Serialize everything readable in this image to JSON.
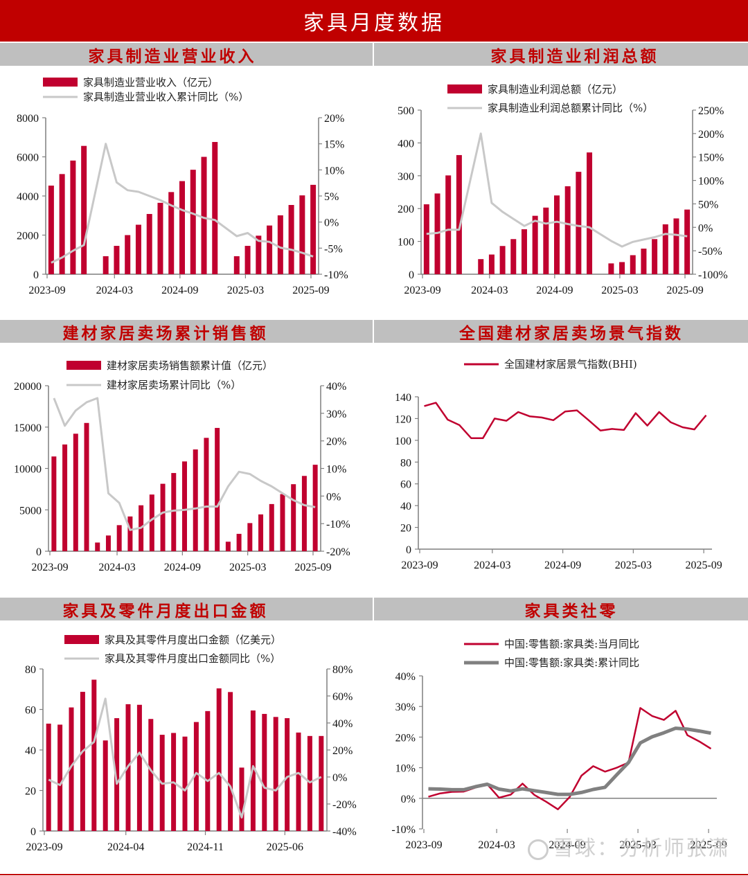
{
  "page": {
    "title": "家具月度数据",
    "watermark": "雪球：分析师张潇"
  },
  "colors": {
    "header_red": "#C00000",
    "bar_red": "#C0002F",
    "line_gray_light": "#C8C8C8",
    "line_gray_dark": "#808080",
    "line_red": "#C0002F",
    "section_gray": "#BFBFBF"
  },
  "sections": [
    {
      "title": "家具制造业营业收入"
    },
    {
      "title": "家具制造业利润总额"
    },
    {
      "title": "建材家居卖场累计销售额"
    },
    {
      "title": "全国建材家居卖场景气指数"
    },
    {
      "title": "家具及零件月度出口金额"
    },
    {
      "title": "家具类社零"
    }
  ],
  "chart_data": [
    {
      "type": "bar",
      "title": "家具制造业营业收入",
      "categories": [
        "2023-09",
        "2023-10",
        "2023-11",
        "2023-12",
        "2024-01",
        "2024-02",
        "2024-03",
        "2024-04",
        "2024-05",
        "2024-06",
        "2024-07",
        "2024-08",
        "2024-09",
        "2024-10",
        "2024-11",
        "2024-12",
        "2025-01",
        "2025-02",
        "2025-03",
        "2025-04",
        "2025-05",
        "2025-06",
        "2025-07",
        "2025-08",
        "2025-09"
      ],
      "xticks": [
        "2023-09",
        "2024-03",
        "2024-09",
        "2025-03",
        "2025-09"
      ],
      "series": [
        {
          "name": "家具制造业营业收入（亿元）",
          "type": "bar",
          "axis": "left",
          "values": [
            4530,
            5120,
            5810,
            6560,
            null,
            920,
            1450,
            2000,
            2530,
            3080,
            3650,
            4200,
            4760,
            5340,
            6000,
            6760,
            null,
            920,
            1450,
            1970,
            2490,
            3010,
            3540,
            4030,
            4570
          ]
        },
        {
          "name": "家具制造业营业收入累计同比（%）",
          "type": "line",
          "axis": "right",
          "values": [
            -7.8,
            -6.8,
            -5.5,
            -4.4,
            null,
            15.0,
            7.6,
            6.1,
            5.8,
            5.0,
            4.2,
            3.2,
            2.3,
            1.6,
            0.8,
            0.4,
            null,
            -2.7,
            -2.1,
            -3.6,
            -3.8,
            -4.9,
            -5.3,
            -5.9,
            -6.6
          ]
        }
      ],
      "ylim": [
        0,
        8000
      ],
      "yticks": [
        "0",
        "2000",
        "4000",
        "6000",
        "8000"
      ],
      "y2lim": [
        -10,
        20
      ],
      "y2ticks": [
        "-10%",
        "-5%",
        "0%",
        "5%",
        "10%",
        "15%",
        "20%"
      ],
      "legend": "top"
    },
    {
      "type": "bar",
      "title": "家具制造业利润总额",
      "categories": [
        "2023-09",
        "2023-10",
        "2023-11",
        "2023-12",
        "2024-01",
        "2024-02",
        "2024-03",
        "2024-04",
        "2024-05",
        "2024-06",
        "2024-07",
        "2024-08",
        "2024-09",
        "2024-10",
        "2024-11",
        "2024-12",
        "2025-01",
        "2025-02",
        "2025-03",
        "2025-04",
        "2025-05",
        "2025-06",
        "2025-07",
        "2025-08",
        "2025-09"
      ],
      "xticks": [
        "2023-09",
        "2024-03",
        "2024-09",
        "2025-03",
        "2025-09"
      ],
      "series": [
        {
          "name": "家具制造业利润总额（亿元）",
          "type": "bar",
          "axis": "left",
          "values": [
            213,
            246,
            301,
            363,
            null,
            46,
            60,
            86,
            107,
            137,
            178,
            203,
            240,
            268,
            312,
            371,
            null,
            33,
            37,
            58,
            78,
            107,
            152,
            170,
            197
          ]
        },
        {
          "name": "家具制造业利润总额累计同比（%）",
          "type": "line",
          "axis": "right",
          "values": [
            -14,
            -12,
            -5,
            -5,
            null,
            200,
            52,
            33,
            18,
            3,
            14,
            8,
            12,
            7,
            3,
            0,
            null,
            -29,
            -41,
            -31,
            -26,
            -21,
            -14,
            -16,
            -19
          ]
        }
      ],
      "ylim": [
        0,
        500
      ],
      "yticks": [
        "0",
        "100",
        "200",
        "300",
        "400",
        "500"
      ],
      "y2lim": [
        -100,
        250
      ],
      "y2ticks": [
        "-100%",
        "-50%",
        "0%",
        "50%",
        "100%",
        "150%",
        "200%",
        "250%"
      ],
      "legend": "top"
    },
    {
      "type": "bar",
      "title": "建材家居卖场累计销售额",
      "categories": [
        "2023-09",
        "2023-10",
        "2023-11",
        "2023-12",
        "2024-01",
        "2024-02",
        "2024-03",
        "2024-04",
        "2024-05",
        "2024-06",
        "2024-07",
        "2024-08",
        "2024-09",
        "2024-10",
        "2024-11",
        "2024-12",
        "2025-01",
        "2025-02",
        "2025-03",
        "2025-04",
        "2025-05",
        "2025-06",
        "2025-07",
        "2025-08",
        "2025-09"
      ],
      "xticks": [
        "2023-09",
        "2024-03",
        "2024-09",
        "2025-03",
        "2025-09"
      ],
      "series": [
        {
          "name": "建材家居卖场销售额累计值（亿元）",
          "type": "bar",
          "axis": "left",
          "values": [
            11450,
            12900,
            14200,
            15500,
            1050,
            1900,
            3150,
            4200,
            5550,
            6850,
            8150,
            9450,
            10850,
            12300,
            13700,
            14900,
            1150,
            2100,
            3400,
            4450,
            5700,
            6900,
            8100,
            9100,
            10450
          ]
        },
        {
          "name": "建材家居卖场累计同比（%）",
          "type": "line",
          "axis": "right",
          "values": [
            35.5,
            25.5,
            31,
            34,
            35.5,
            1,
            -2.5,
            -12.3,
            -11.5,
            -8.5,
            -6,
            -5.3,
            -5,
            -4.5,
            -3.8,
            -3.8,
            3.5,
            8.8,
            8,
            5.5,
            3.5,
            1,
            -1.5,
            -3.3,
            -4
          ]
        }
      ],
      "ylim": [
        0,
        20000
      ],
      "yticks": [
        "0",
        "5000",
        "10000",
        "15000",
        "20000"
      ],
      "y2lim": [
        -20,
        40
      ],
      "y2ticks": [
        "-20%",
        "-10%",
        "0%",
        "10%",
        "20%",
        "30%",
        "40%"
      ],
      "legend": "top"
    },
    {
      "type": "line",
      "title": "全国建材家居卖场景气指数",
      "categories": [
        "2023-09",
        "2023-10",
        "2023-11",
        "2023-12",
        "2024-01",
        "2024-02",
        "2024-03",
        "2024-04",
        "2024-05",
        "2024-06",
        "2024-07",
        "2024-08",
        "2024-09",
        "2024-10",
        "2024-11",
        "2024-12",
        "2025-01",
        "2025-02",
        "2025-03",
        "2025-04",
        "2025-05",
        "2025-06",
        "2025-07",
        "2025-08",
        "2025-09"
      ],
      "xticks": [
        "2023-09",
        "2024-03",
        "2024-09",
        "2025-03",
        "2025-09"
      ],
      "series": [
        {
          "name": "全国建材家居景气指数(BHI)",
          "type": "line",
          "axis": "left",
          "values": [
            131.5,
            134.5,
            119,
            114,
            102,
            102,
            120,
            118,
            126,
            122,
            121,
            118.5,
            126.5,
            127.5,
            118.5,
            109,
            110.5,
            109.5,
            125,
            113.5,
            126,
            116.5,
            112,
            110,
            123
          ]
        }
      ],
      "ylim": [
        0,
        140
      ],
      "yticks": [
        "0",
        "20",
        "40",
        "60",
        "80",
        "100",
        "120",
        "140"
      ],
      "legend": "top"
    },
    {
      "type": "bar",
      "title": "家具及零件月度出口金额",
      "categories": [
        "2023-09",
        "2023-10",
        "2023-11",
        "2023-12",
        "2024-01",
        "2024-02",
        "2024-03",
        "2024-04",
        "2024-05",
        "2024-06",
        "2024-07",
        "2024-08",
        "2024-09",
        "2024-10",
        "2024-11",
        "2024-12",
        "2025-01",
        "2025-02",
        "2025-03",
        "2025-04",
        "2025-05",
        "2025-06",
        "2025-07",
        "2025-08",
        "2025-09"
      ],
      "xticks": [
        "2023-09",
        "2024-04",
        "2024-11",
        "2025-06"
      ],
      "series": [
        {
          "name": "家具及其零件月度出口金额（亿美元）",
          "type": "bar",
          "axis": "left",
          "values": [
            53.0,
            52.5,
            61.0,
            68.7,
            74.7,
            44.7,
            55.7,
            62.6,
            62.3,
            55.3,
            47.5,
            48.4,
            46.6,
            53.8,
            59.2,
            70.4,
            68.6,
            31.3,
            59.5,
            57.8,
            56.3,
            55.7,
            48.6,
            46.9,
            46.9
          ]
        },
        {
          "name": "家具及其零件月度出口金额同比（%）",
          "type": "line",
          "axis": "right",
          "values": [
            -2,
            -6,
            8,
            19,
            26,
            58,
            -5,
            8,
            18,
            5,
            -5,
            -4,
            -10,
            3,
            -3,
            3,
            -7,
            -30,
            8,
            -8,
            -10,
            0,
            3,
            -4,
            0
          ]
        }
      ],
      "ylim": [
        0,
        80
      ],
      "yticks": [
        "0",
        "20",
        "40",
        "60",
        "80"
      ],
      "y2lim": [
        -40,
        80
      ],
      "y2ticks": [
        "-40%",
        "-20%",
        "0%",
        "20%",
        "40%",
        "60%",
        "80%"
      ],
      "legend": "top"
    },
    {
      "type": "line",
      "title": "家具类社零",
      "categories": [
        "2023-09",
        "2023-10",
        "2023-11",
        "2023-12",
        "2024-01",
        "2024-02",
        "2024-03",
        "2024-04",
        "2024-05",
        "2024-06",
        "2024-07",
        "2024-08",
        "2024-09",
        "2024-10",
        "2024-11",
        "2024-12",
        "2025-01",
        "2025-02",
        "2025-03",
        "2025-04",
        "2025-05",
        "2025-06",
        "2025-07",
        "2025-08",
        "2025-09"
      ],
      "xticks": [
        "2023-09",
        "2024-03",
        "2024-09",
        "2025-03",
        "2025-09"
      ],
      "series": [
        {
          "name": "中国:零售额:家具类:当月同比",
          "type": "line",
          "color": "red",
          "values": [
            0.5,
            1.6,
            2.1,
            2.2,
            3.5,
            4.6,
            0.2,
            1.2,
            4.8,
            1.1,
            -1.1,
            -3.6,
            0.4,
            7.4,
            10.5,
            8.7,
            10.0,
            11.7,
            29.5,
            26.9,
            25.6,
            28.6,
            20.6,
            18.6,
            16.2
          ]
        },
        {
          "name": "中国:零售额:家具类:累计同比",
          "type": "line",
          "color": "gray",
          "values": [
            3.1,
            3.0,
            2.8,
            2.8,
            3.8,
            4.6,
            3.0,
            2.4,
            3.1,
            2.5,
            1.9,
            1.3,
            1.3,
            1.9,
            2.9,
            3.6,
            7.7,
            11.7,
            18.1,
            20.1,
            21.4,
            22.9,
            22.6,
            22.0,
            21.3
          ]
        }
      ],
      "ylim": [
        -10,
        40
      ],
      "yticks": [
        "-10%",
        "0%",
        "10%",
        "20%",
        "30%",
        "40%"
      ],
      "legend": "top"
    }
  ]
}
